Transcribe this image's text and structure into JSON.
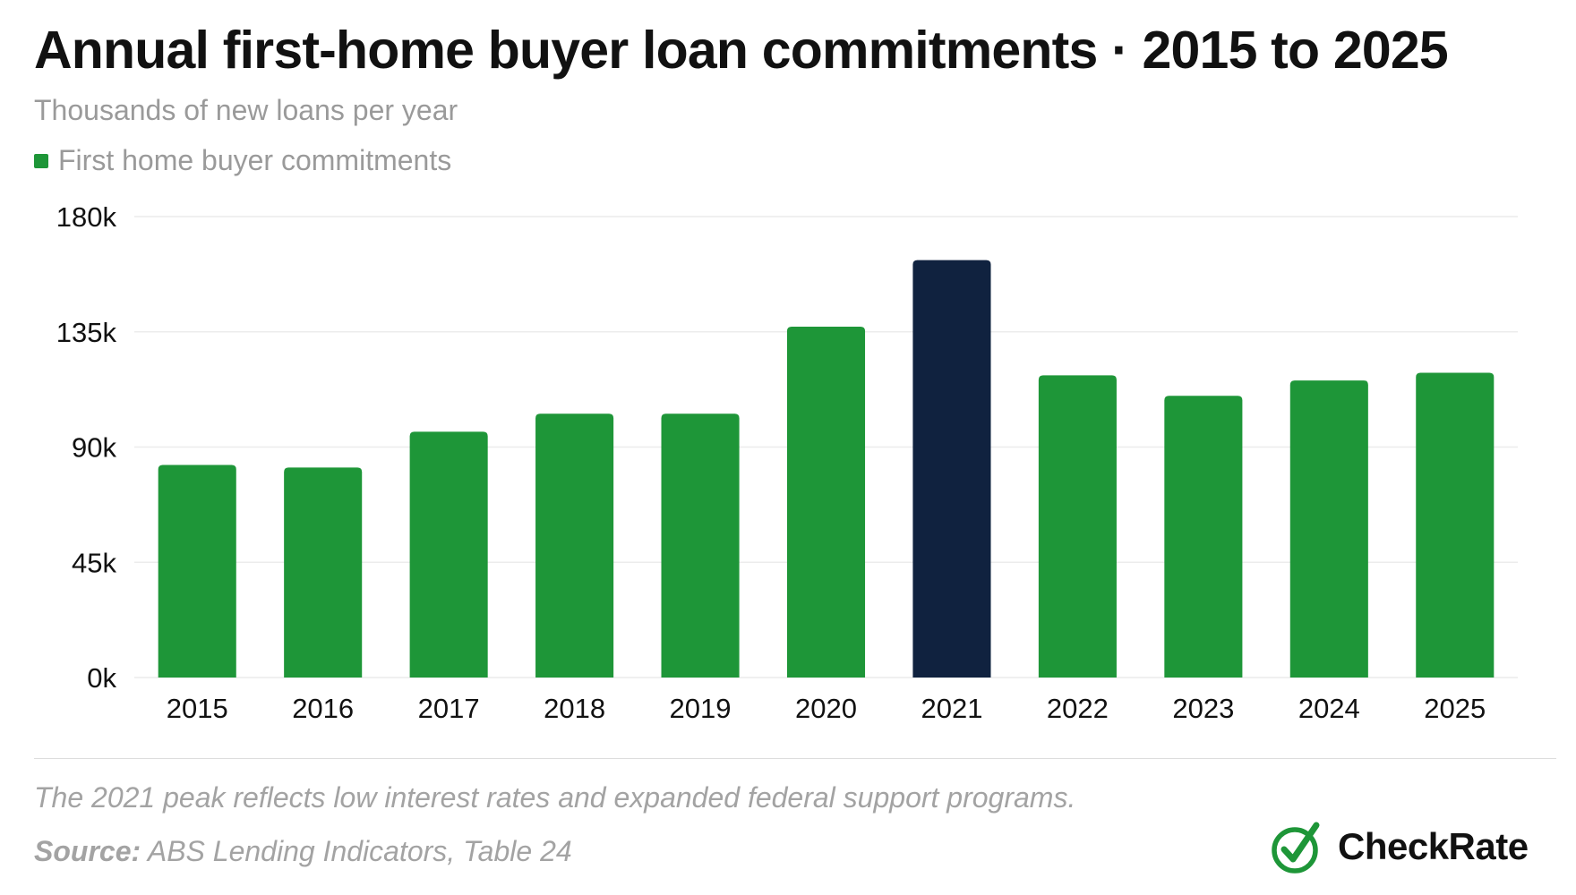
{
  "title": "Annual first-home buyer loan commitments · 2015 to 2025",
  "subtitle": "Thousands of new loans per year",
  "note": "The 2021 peak reflects low interest rates and expanded federal support programs.",
  "source": {
    "prefix": "Source:",
    "text": "ABS Lending Indicators, Table 24"
  },
  "brand": {
    "name": "CheckRate",
    "icon": "check-circle-icon"
  },
  "colors": {
    "primary": "#1e9638",
    "highlight": "#10223f",
    "grid": "#ececec",
    "axis_text": "#111111",
    "muted_text": "#9a9a9a"
  },
  "chart_data": {
    "type": "bar",
    "categories": [
      "2015",
      "2016",
      "2017",
      "2018",
      "2019",
      "2020",
      "2021",
      "2022",
      "2023",
      "2024",
      "2025"
    ],
    "series": [
      {
        "name": "First home buyer commitments",
        "values": [
          83,
          82,
          96,
          103,
          103,
          137,
          163,
          118,
          110,
          116,
          119
        ]
      }
    ],
    "highlight_category": "2021",
    "ylim": [
      0,
      180
    ],
    "yticks": [
      0,
      45,
      90,
      135,
      180
    ],
    "ytick_labels": [
      "0k",
      "45k",
      "90k",
      "135k",
      "180k"
    ],
    "grid": true,
    "legend_position": "top-left",
    "xlabel": "",
    "ylabel": ""
  }
}
